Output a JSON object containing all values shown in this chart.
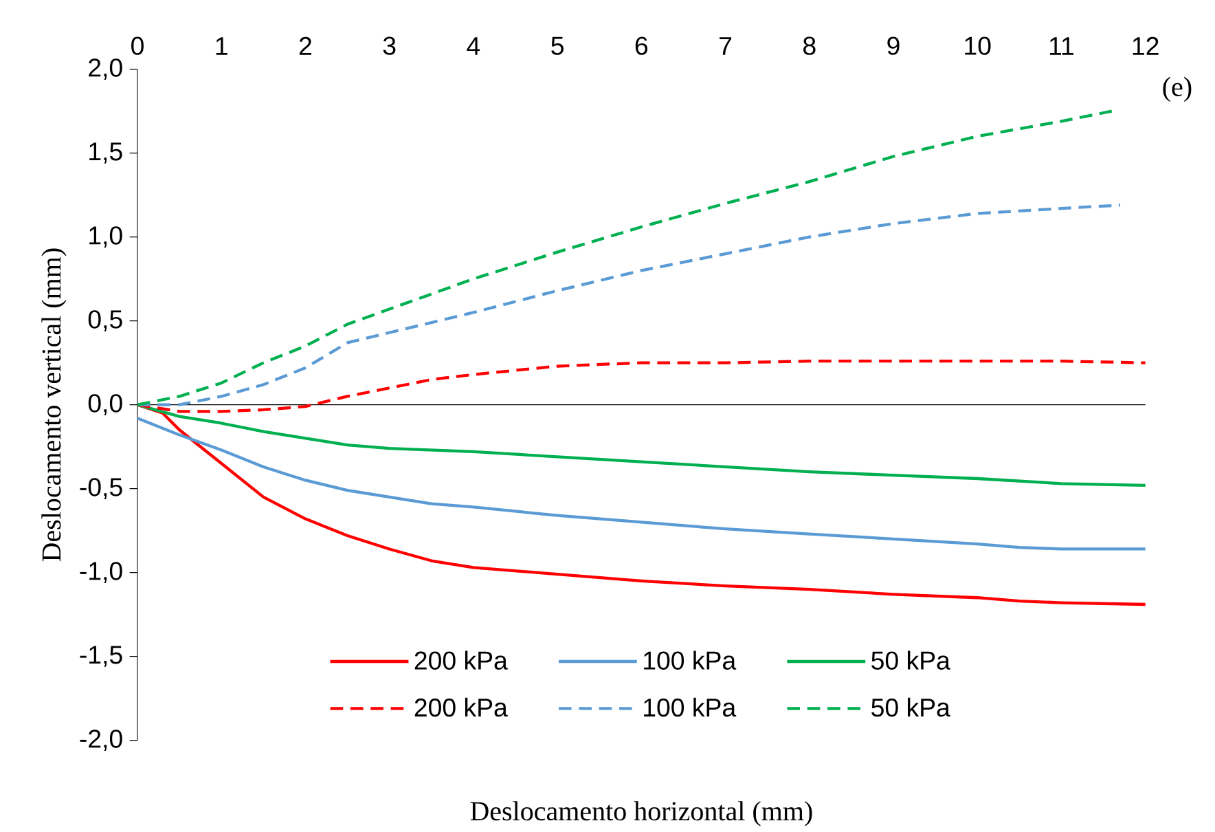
{
  "chart_data": {
    "type": "line",
    "xlabel": "Deslocamento horizontal (mm)",
    "ylabel": "Deslocamento vertical (mm)",
    "annotations": [
      "(e)"
    ],
    "xlim": [
      0,
      12
    ],
    "ylim": [
      -2,
      2
    ],
    "xticks": [
      0,
      1,
      2,
      3,
      4,
      5,
      6,
      7,
      8,
      9,
      10,
      11,
      12
    ],
    "yticks": [
      {
        "value": -2,
        "label": "-2,0"
      },
      {
        "value": -1.5,
        "label": "-1,5"
      },
      {
        "value": -1,
        "label": "-1,0"
      },
      {
        "value": -0.5,
        "label": "-0,5"
      },
      {
        "value": 0,
        "label": "0,0"
      },
      {
        "value": 0.5,
        "label": "0,5"
      },
      {
        "value": 1,
        "label": "1,0"
      },
      {
        "value": 1.5,
        "label": "1,5"
      },
      {
        "value": 2,
        "label": "2,0"
      }
    ],
    "legend": "bottom",
    "marker": "none",
    "series": [
      {
        "name": "200 kPa",
        "color": "#ff0000",
        "line_style": "solid",
        "x": [
          0,
          0.3,
          0.5,
          1,
          1.5,
          2,
          2.5,
          3,
          3.5,
          4,
          5,
          6,
          7,
          8,
          9,
          10,
          10.5,
          11,
          12
        ],
        "values": [
          0,
          -0.05,
          -0.15,
          -0.35,
          -0.55,
          -0.68,
          -0.78,
          -0.86,
          -0.93,
          -0.97,
          -1.01,
          -1.05,
          -1.08,
          -1.1,
          -1.13,
          -1.15,
          -1.17,
          -1.18,
          -1.19
        ]
      },
      {
        "name": "100 kPa",
        "color": "#5b9bd5",
        "line_style": "solid",
        "x": [
          0,
          0.5,
          1,
          1.5,
          2,
          2.5,
          3,
          3.5,
          4,
          5,
          6,
          7,
          8,
          9,
          10,
          10.5,
          11,
          12
        ],
        "values": [
          -0.08,
          -0.18,
          -0.27,
          -0.37,
          -0.45,
          -0.51,
          -0.55,
          -0.59,
          -0.61,
          -0.66,
          -0.7,
          -0.74,
          -0.77,
          -0.8,
          -0.83,
          -0.85,
          -0.86,
          -0.86
        ]
      },
      {
        "name": "50 kPa",
        "color": "#00b050",
        "line_style": "solid",
        "x": [
          0,
          0.5,
          1,
          1.5,
          2,
          2.5,
          3,
          4,
          5,
          6,
          7,
          8,
          9,
          10,
          11,
          12
        ],
        "values": [
          0,
          -0.07,
          -0.11,
          -0.16,
          -0.2,
          -0.24,
          -0.26,
          -0.28,
          -0.31,
          -0.34,
          -0.37,
          -0.4,
          -0.42,
          -0.44,
          -0.47,
          -0.48
        ]
      },
      {
        "name": "200 kPa",
        "color": "#ff0000",
        "line_style": "dashed",
        "x": [
          0,
          0.5,
          1,
          1.5,
          2,
          2.5,
          3,
          3.5,
          4,
          5,
          6,
          7,
          8,
          9,
          10,
          11,
          12
        ],
        "values": [
          0,
          -0.04,
          -0.04,
          -0.03,
          -0.01,
          0.05,
          0.1,
          0.15,
          0.18,
          0.23,
          0.25,
          0.25,
          0.26,
          0.26,
          0.26,
          0.26,
          0.25
        ]
      },
      {
        "name": "100 kPa",
        "color": "#5b9bd5",
        "line_style": "dashed",
        "x": [
          0,
          0.5,
          1,
          1.5,
          2,
          2.5,
          3,
          4,
          5,
          6,
          7,
          8,
          9,
          10,
          11,
          11.7
        ],
        "values": [
          0,
          0,
          0.05,
          0.12,
          0.22,
          0.37,
          0.43,
          0.55,
          0.68,
          0.8,
          0.9,
          1.0,
          1.08,
          1.14,
          1.17,
          1.19
        ]
      },
      {
        "name": "50 kPa",
        "color": "#00b050",
        "line_style": "dashed",
        "x": [
          0,
          0.5,
          1,
          1.5,
          2,
          2.5,
          3,
          4,
          5,
          6,
          7,
          8,
          9,
          10,
          11,
          11.6
        ],
        "values": [
          0,
          0.05,
          0.13,
          0.25,
          0.35,
          0.48,
          0.57,
          0.75,
          0.91,
          1.06,
          1.2,
          1.33,
          1.48,
          1.6,
          1.69,
          1.75
        ]
      }
    ]
  }
}
